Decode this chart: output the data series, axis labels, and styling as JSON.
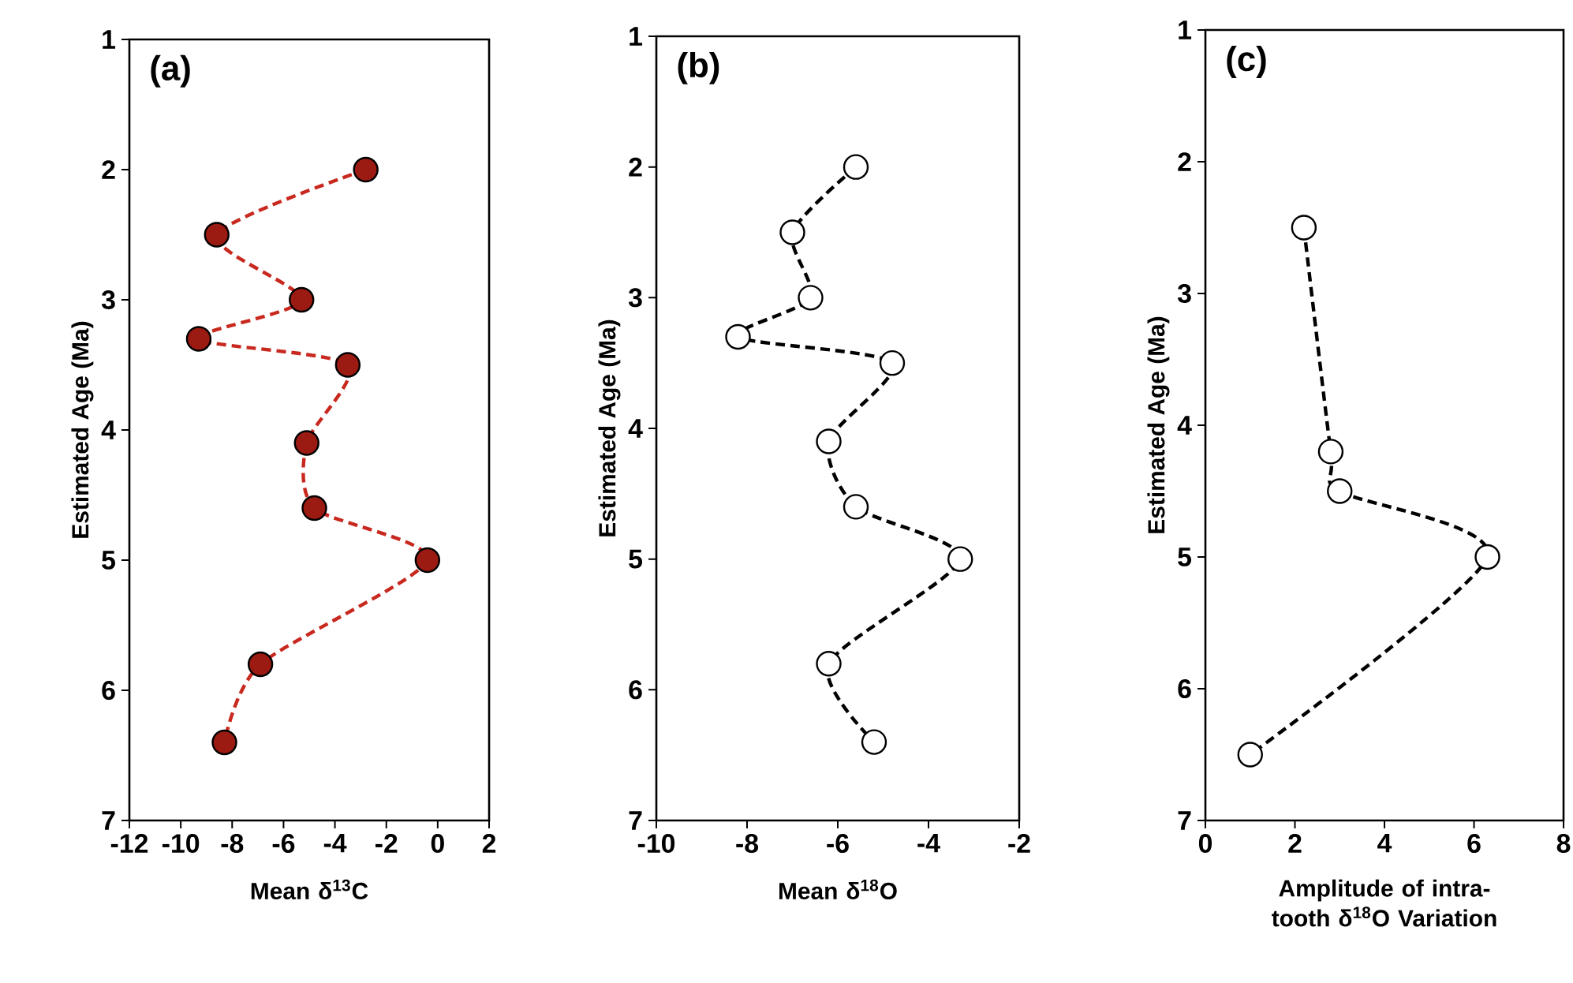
{
  "chart_data": [
    {
      "type": "line",
      "title": "(a)",
      "xlabel": "Mean δ$^{13}$C",
      "ylabel": "Estimated Age (Ma)",
      "xlim": [
        -12,
        2
      ],
      "xticks": [
        -12,
        -10,
        -8,
        -6,
        -4,
        -2,
        0,
        2
      ],
      "ylim": [
        7,
        1
      ],
      "yticks": [
        1,
        2,
        3,
        4,
        5,
        6,
        7
      ],
      "marker": "circle",
      "line_style": "dashed",
      "series": [
        {
          "color": "#c8281e",
          "colors": [
            "#9b1b12",
            "#9b1b12",
            "#9b1b12",
            "#9b1b12",
            "#9b1b12",
            "#9b1b12",
            "#9b1b12",
            "#9b1b12",
            "#9b1b12",
            "#9b1b12"
          ],
          "x": [
            -2.8,
            -8.6,
            -5.3,
            -9.3,
            -3.5,
            -5.1,
            -4.8,
            -0.4,
            -6.9,
            -8.3
          ],
          "values": [
            2.0,
            2.5,
            3.0,
            3.3,
            3.5,
            4.1,
            4.6,
            5.0,
            5.8,
            6.4
          ]
        }
      ]
    },
    {
      "type": "line",
      "title": "(b)",
      "xlabel": "Mean δ$^{18}$O",
      "ylabel": "Estimated Age (Ma)",
      "xlim": [
        -10,
        -2
      ],
      "xticks": [
        -10,
        -8,
        -6,
        -4,
        -2
      ],
      "ylim": [
        7,
        1
      ],
      "yticks": [
        1,
        2,
        3,
        4,
        5,
        6,
        7
      ],
      "marker": "circle",
      "line_style": "dashed",
      "series": [
        {
          "color": "#000000",
          "colors": [
            "#ffffff",
            "#ffffff",
            "#ffffff",
            "#ffffff",
            "#ffffff",
            "#ffffff",
            "#ffffff",
            "#ffffff",
            "#ffffff",
            "#ffffff"
          ],
          "x": [
            -5.6,
            -7.0,
            -6.6,
            -8.2,
            -4.8,
            -6.2,
            -5.6,
            -3.3,
            -6.2,
            -5.2
          ],
          "values": [
            2.0,
            2.5,
            3.0,
            3.3,
            3.5,
            4.1,
            4.6,
            5.0,
            5.8,
            6.4
          ]
        }
      ]
    },
    {
      "type": "line",
      "title": "(c)",
      "xlabel": "Amplitude of intra-tooth δ$^{18}$O Variation",
      "ylabel": "Estimated Age (Ma)",
      "xlim": [
        0,
        8
      ],
      "xticks": [
        0,
        2,
        4,
        6,
        8
      ],
      "ylim": [
        7,
        1
      ],
      "yticks": [
        1,
        2,
        3,
        4,
        5,
        6,
        7
      ],
      "marker": "circle",
      "line_style": "dashed",
      "series": [
        {
          "color": "#000000",
          "colors": [
            "#ffffff",
            "#ffffff",
            "#ffffff",
            "#ffffff",
            "#ffffff"
          ],
          "x": [
            2.2,
            2.8,
            3.0,
            6.3,
            1.0
          ],
          "values": [
            2.5,
            4.2,
            4.5,
            5.0,
            6.5
          ]
        }
      ]
    }
  ]
}
